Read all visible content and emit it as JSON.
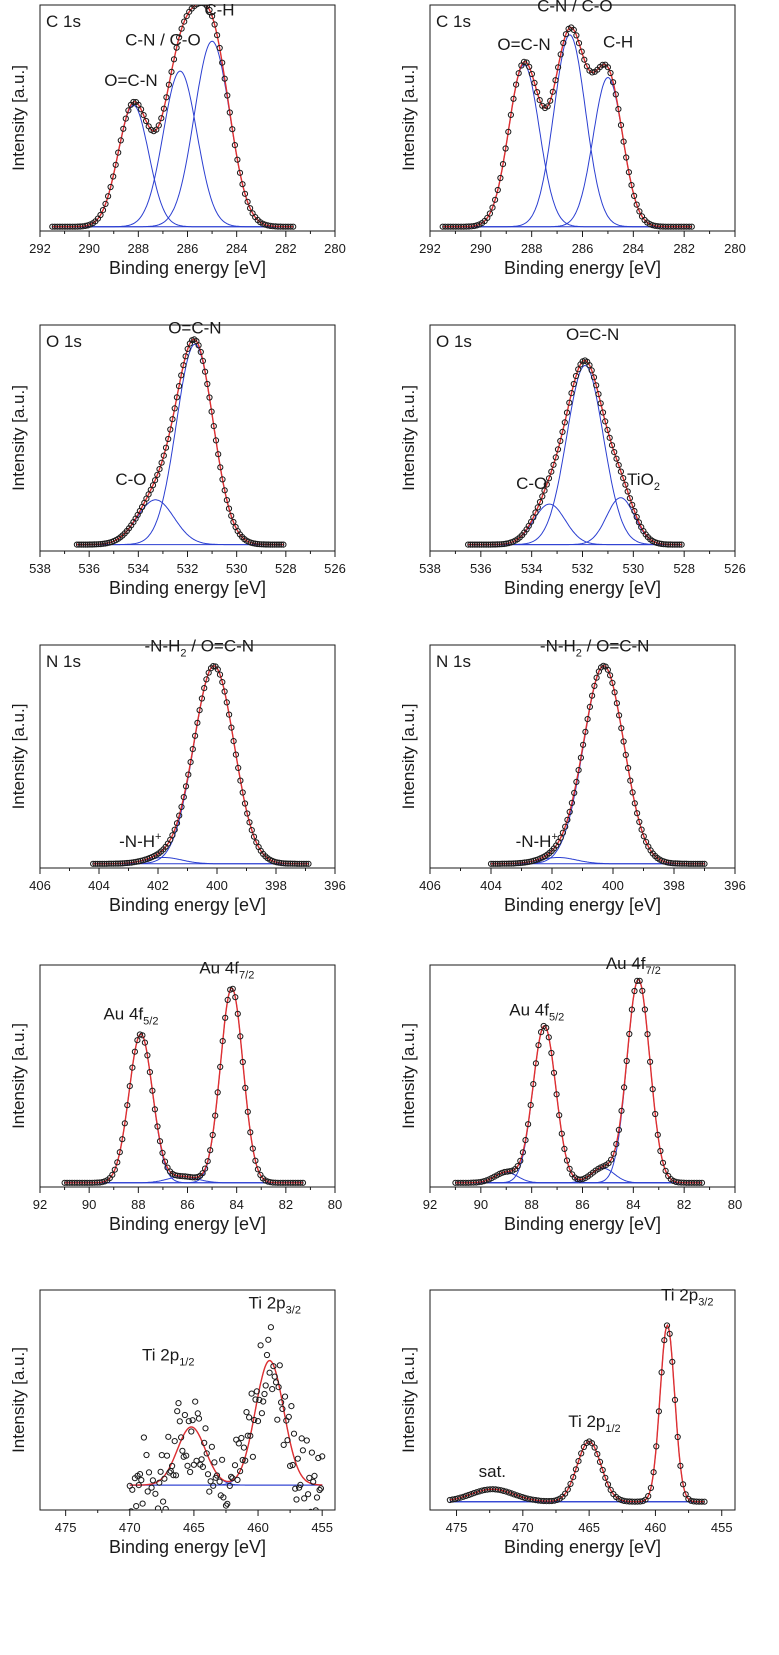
{
  "figure": {
    "panel_width_label": "",
    "colors": {
      "data": "#1a1a1a",
      "fit": "#e03030",
      "component": "#2b3fd1",
      "axis": "#1a1a1a"
    }
  },
  "chart_data": [
    {
      "id": "c1s-left",
      "type": "scatter",
      "title": "",
      "corner_label": "C 1s",
      "xlabel": "Binding energy [eV]",
      "ylabel": "Intensity [a.u.]",
      "xlim": [
        292,
        280
      ],
      "xticks": [
        "292",
        "290",
        "288",
        "286",
        "284",
        "282",
        "280"
      ],
      "xtick_values": [
        292,
        290,
        288,
        286,
        284,
        282,
        280
      ],
      "data_range": [
        291.5,
        281.7
      ],
      "baseline": 0.02,
      "ymax": 1.06,
      "components": [
        {
          "label": "O=C-N",
          "center": 288.2,
          "amp": 0.57,
          "sigma": 0.62
        },
        {
          "label": "C-N / C-O",
          "center": 286.3,
          "amp": 0.73,
          "sigma": 0.68
        },
        {
          "label": "C-H",
          "center": 285.0,
          "amp": 0.87,
          "sigma": 0.72
        }
      ],
      "annotations": [
        {
          "text": "O=C-N",
          "x": 288.3,
          "y": 0.68
        },
        {
          "text": "C-N / C-O",
          "x": 287.0,
          "y": 0.87
        },
        {
          "text": "C-H",
          "x": 284.7,
          "y": 1.01
        }
      ]
    },
    {
      "id": "c1s-right",
      "type": "scatter",
      "title": "",
      "corner_label": "C 1s",
      "xlabel": "Binding energy [eV]",
      "ylabel": "Intensity [a.u.]",
      "xlim": [
        292,
        280
      ],
      "xticks": [
        "292",
        "290",
        "288",
        "286",
        "284",
        "282",
        "280"
      ],
      "xtick_values": [
        292,
        290,
        288,
        286,
        284,
        282,
        280
      ],
      "data_range": [
        291.5,
        281.7
      ],
      "baseline": 0.02,
      "ymax": 1.06,
      "components": [
        {
          "label": "O=C-N",
          "center": 288.3,
          "amp": 0.76,
          "sigma": 0.6
        },
        {
          "label": "C-N / C-O",
          "center": 286.5,
          "amp": 0.9,
          "sigma": 0.62
        },
        {
          "label": "C-H",
          "center": 285.0,
          "amp": 0.7,
          "sigma": 0.58
        }
      ],
      "annotations": [
        {
          "text": "O=C-N",
          "x": 288.3,
          "y": 0.85
        },
        {
          "text": "C-N / C-O",
          "x": 286.3,
          "y": 1.03
        },
        {
          "text": "C-H",
          "x": 284.6,
          "y": 0.86
        }
      ]
    },
    {
      "id": "o1s-left",
      "type": "scatter",
      "title": "",
      "corner_label": "O 1s",
      "xlabel": "Binding energy [eV]",
      "ylabel": "Intensity [a.u.]",
      "xlim": [
        538,
        526
      ],
      "xticks": [
        "538",
        "536",
        "534",
        "532",
        "530",
        "528",
        "526"
      ],
      "xtick_values": [
        538,
        536,
        534,
        532,
        530,
        528,
        526
      ],
      "data_range": [
        536.5,
        528.1
      ],
      "baseline": 0.03,
      "ymax": 1.06,
      "components": [
        {
          "label": "O=C-N",
          "center": 531.7,
          "amp": 0.94,
          "sigma": 0.75
        },
        {
          "label": "C-O",
          "center": 533.3,
          "amp": 0.21,
          "sigma": 0.75
        }
      ],
      "annotations": [
        {
          "text": "O=C-N",
          "x": 531.7,
          "y": 1.02
        },
        {
          "text": "C-O",
          "x": 534.3,
          "y": 0.31
        }
      ]
    },
    {
      "id": "o1s-right",
      "type": "scatter",
      "title": "",
      "corner_label": "O 1s",
      "xlabel": "Binding energy [eV]",
      "ylabel": "Intensity [a.u.]",
      "xlim": [
        538,
        526
      ],
      "xticks": [
        "538",
        "536",
        "534",
        "532",
        "530",
        "528",
        "526"
      ],
      "xtick_values": [
        538,
        536,
        534,
        532,
        530,
        528,
        526
      ],
      "data_range": [
        536.5,
        528.1
      ],
      "baseline": 0.03,
      "ymax": 1.06,
      "components": [
        {
          "label": "O=C-N",
          "center": 531.9,
          "amp": 0.84,
          "sigma": 0.72
        },
        {
          "label": "C-O",
          "center": 533.3,
          "amp": 0.19,
          "sigma": 0.62
        },
        {
          "label": "TiO2",
          "center": 530.5,
          "amp": 0.22,
          "sigma": 0.55
        }
      ],
      "annotations": [
        {
          "text": "O=C-N",
          "x": 531.6,
          "y": 0.99
        },
        {
          "text": "C-O",
          "x": 534.0,
          "y": 0.29
        },
        {
          "text": "TiO",
          "sub": "2",
          "x": 529.6,
          "y": 0.31
        }
      ]
    },
    {
      "id": "n1s-left",
      "type": "scatter",
      "title": "",
      "corner_label": "N 1s",
      "xlabel": "Binding energy [eV]",
      "ylabel": "Intensity [a.u.]",
      "xlim": [
        406,
        396
      ],
      "xticks": [
        "406",
        "404",
        "402",
        "400",
        "398",
        "396"
      ],
      "xtick_values": [
        406,
        404,
        402,
        400,
        398,
        396
      ],
      "data_range": [
        404.2,
        396.9
      ],
      "baseline": 0.02,
      "ymax": 1.06,
      "components": [
        {
          "label": "-N-H2 / O=C-N",
          "center": 400.1,
          "amp": 0.94,
          "sigma": 0.68
        },
        {
          "label": "-N-H+",
          "center": 401.8,
          "amp": 0.03,
          "sigma": 0.6
        }
      ],
      "annotations": [
        {
          "text": "-N-H",
          "sub": "2",
          "tail": " / O=C-N",
          "x": 400.6,
          "y": 1.03
        },
        {
          "text": "-N-H",
          "sup": "+",
          "x": 402.6,
          "y": 0.1
        }
      ]
    },
    {
      "id": "n1s-right",
      "type": "scatter",
      "title": "",
      "corner_label": "N 1s",
      "xlabel": "Binding energy [eV]",
      "ylabel": "Intensity [a.u.]",
      "xlim": [
        406,
        396
      ],
      "xticks": [
        "406",
        "404",
        "402",
        "400",
        "398",
        "396"
      ],
      "xtick_values": [
        406,
        404,
        402,
        400,
        398,
        396
      ],
      "data_range": [
        404.0,
        397.0
      ],
      "baseline": 0.02,
      "ymax": 1.06,
      "components": [
        {
          "label": "-N-H2 / O=C-N",
          "center": 400.3,
          "amp": 0.94,
          "sigma": 0.66
        },
        {
          "label": "-N-H+",
          "center": 401.8,
          "amp": 0.03,
          "sigma": 0.6
        }
      ],
      "annotations": [
        {
          "text": "-N-H",
          "sub": "2",
          "tail": " / O=C-N",
          "x": 400.6,
          "y": 1.03
        },
        {
          "text": "-N-H",
          "sup": "+",
          "x": 402.5,
          "y": 0.1
        }
      ]
    },
    {
      "id": "au4f-left",
      "type": "scatter",
      "title": "",
      "corner_label": "",
      "xlabel": "Binding energy [eV]",
      "ylabel": "Intensity [a.u.]",
      "xlim": [
        92,
        80
      ],
      "xticks": [
        "92",
        "90",
        "88",
        "86",
        "84",
        "82",
        "80"
      ],
      "xtick_values": [
        92,
        90,
        88,
        86,
        84,
        82,
        80
      ],
      "data_range": [
        91.0,
        81.3
      ],
      "baseline": 0.02,
      "ymax": 1.06,
      "components": [
        {
          "label": "Au 4f5/2",
          "center": 87.9,
          "amp": 0.71,
          "sigma": 0.48
        },
        {
          "label": "Au 4f7/2",
          "center": 84.2,
          "amp": 0.93,
          "sigma": 0.46
        },
        {
          "label": "",
          "center": 86.2,
          "amp": 0.03,
          "sigma": 0.6
        }
      ],
      "annotations": [
        {
          "text": "Au 4f",
          "sub": "5/2",
          "x": 88.3,
          "y": 0.8
        },
        {
          "text": "Au 4f",
          "sub": "7/2",
          "x": 84.4,
          "y": 1.02
        }
      ]
    },
    {
      "id": "au4f-right",
      "type": "scatter",
      "title": "",
      "corner_label": "",
      "xlabel": "Binding energy [eV]",
      "ylabel": "Intensity [a.u.]",
      "xlim": [
        92,
        80
      ],
      "xticks": [
        "92",
        "90",
        "88",
        "86",
        "84",
        "82",
        "80"
      ],
      "xtick_values": [
        92,
        90,
        88,
        86,
        84,
        82,
        80
      ],
      "data_range": [
        91.0,
        81.3
      ],
      "baseline": 0.02,
      "ymax": 1.06,
      "components": [
        {
          "label": "Au 4f5/2",
          "center": 87.5,
          "amp": 0.75,
          "sigma": 0.45
        },
        {
          "label": "Au 4f7/2",
          "center": 83.8,
          "amp": 0.97,
          "sigma": 0.45
        },
        {
          "label": "",
          "center": 89.0,
          "amp": 0.05,
          "sigma": 0.45
        },
        {
          "label": "",
          "center": 85.2,
          "amp": 0.07,
          "sigma": 0.45
        }
      ],
      "annotations": [
        {
          "text": "Au 4f",
          "sub": "5/2",
          "x": 87.8,
          "y": 0.82
        },
        {
          "text": "Au 4f",
          "sub": "7/2",
          "x": 84.0,
          "y": 1.04
        }
      ]
    },
    {
      "id": "ti2p-left",
      "type": "scatter",
      "title": "",
      "corner_label": "",
      "xlabel": "Binding energy [eV]",
      "ylabel": "Intensity [a.u.]",
      "xlim": [
        477,
        454
      ],
      "xticks": [
        "475",
        "470",
        "465",
        "460",
        "455"
      ],
      "xtick_values": [
        475,
        470,
        465,
        460,
        455
      ],
      "data_range": [
        470.0,
        455.0
      ],
      "baseline": 0.12,
      "ymax": 1.06,
      "noise": 0.22,
      "components": [
        {
          "label": "Ti 2p1/2",
          "center": 465.2,
          "amp": 0.28,
          "sigma": 1.1
        },
        {
          "label": "Ti 2p3/2",
          "center": 459.1,
          "amp": 0.6,
          "sigma": 1.1
        }
      ],
      "annotations": [
        {
          "text": "Ti 2p",
          "sub": "1/2",
          "x": 467.0,
          "y": 0.72
        },
        {
          "text": "Ti 2p",
          "sub": "3/2",
          "x": 458.7,
          "y": 0.97
        }
      ]
    },
    {
      "id": "ti2p-right",
      "type": "scatter",
      "title": "",
      "corner_label": "",
      "xlabel": "Binding energy [eV]",
      "ylabel": "Intensity [a.u.]",
      "xlim": [
        477,
        454
      ],
      "xticks": [
        "475",
        "470",
        "465",
        "460",
        "455"
      ],
      "xtick_values": [
        475,
        470,
        465,
        460,
        455
      ],
      "data_range": [
        475.5,
        456.3
      ],
      "baseline": 0.04,
      "ymax": 1.06,
      "components": [
        {
          "label": "sat.",
          "center": 472.3,
          "amp": 0.06,
          "sigma": 1.6
        },
        {
          "label": "Ti 2p1/2",
          "center": 465.0,
          "amp": 0.29,
          "sigma": 0.9
        },
        {
          "label": "Ti 2p3/2",
          "center": 459.1,
          "amp": 0.85,
          "sigma": 0.55
        }
      ],
      "annotations": [
        {
          "text": "sat.",
          "x": 472.3,
          "y": 0.16
        },
        {
          "text": "Ti 2p",
          "sub": "1/2",
          "x": 464.6,
          "y": 0.4
        },
        {
          "text": "Ti 2p",
          "sub": "3/2",
          "x": 457.6,
          "y": 1.01
        }
      ]
    }
  ]
}
